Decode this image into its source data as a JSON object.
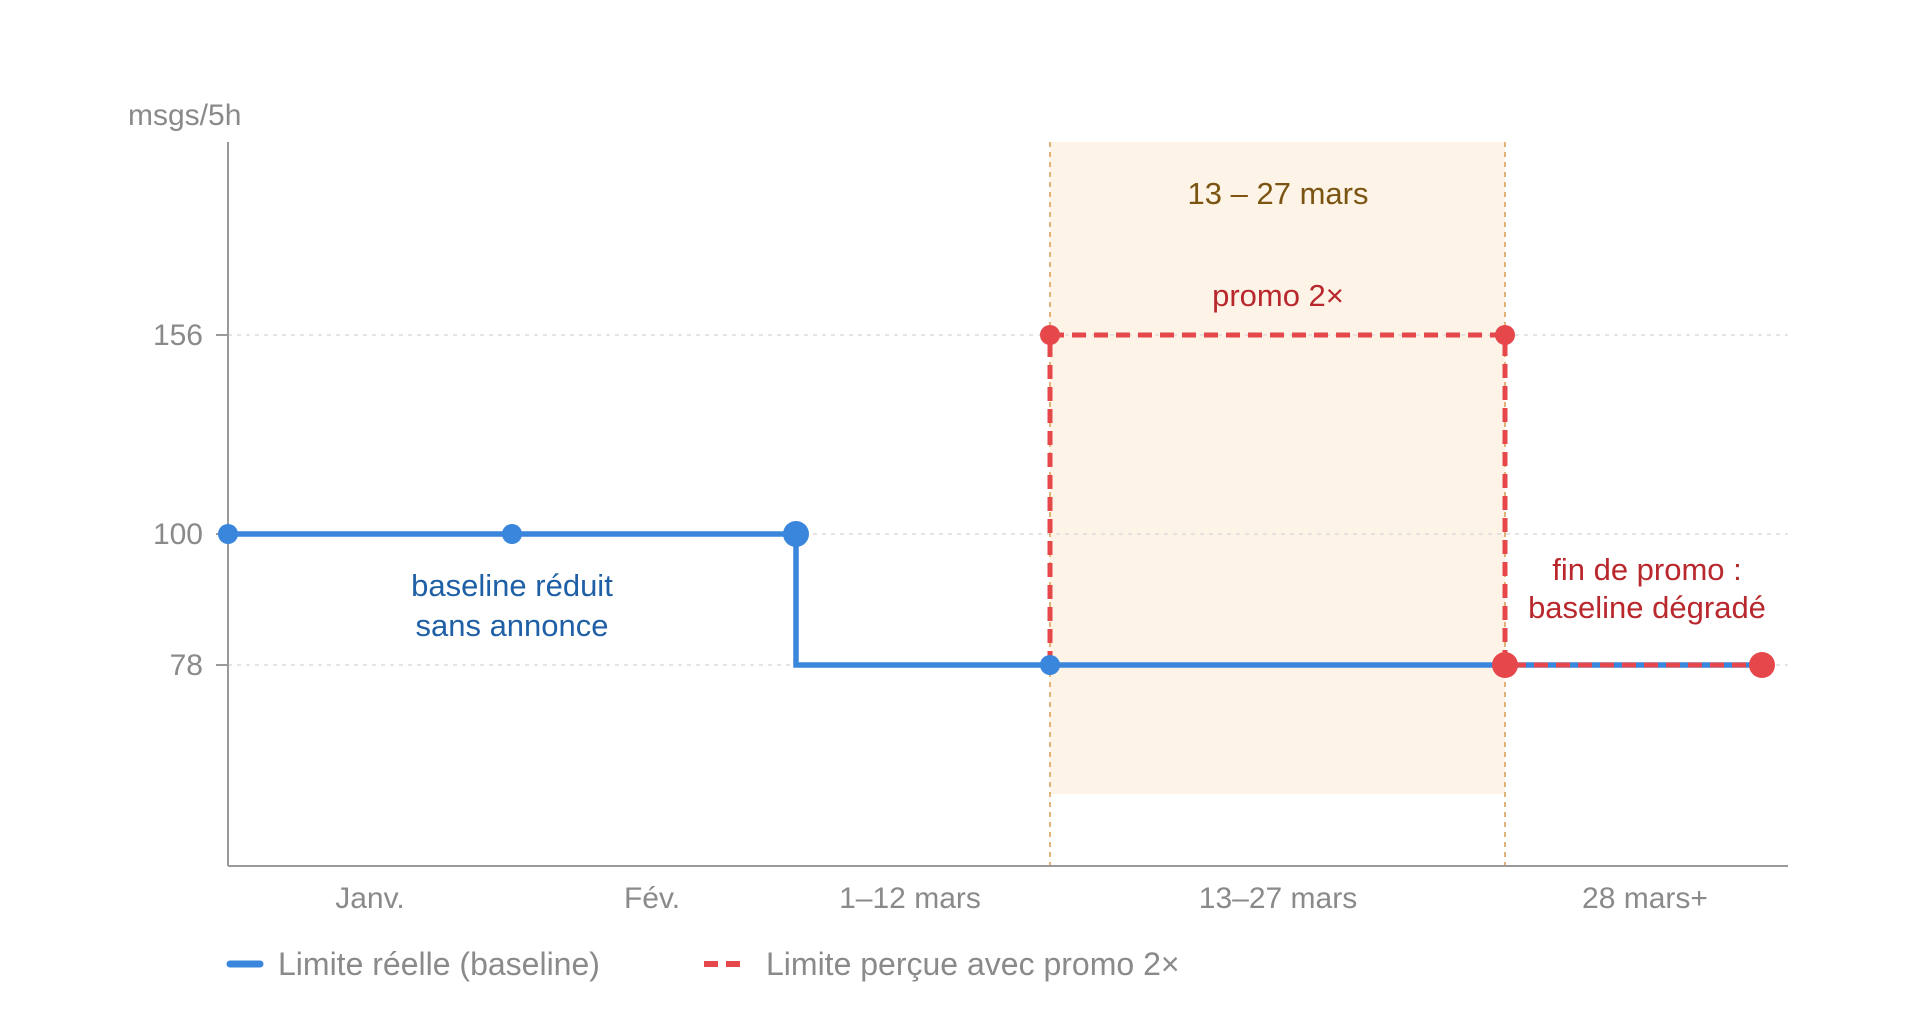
{
  "chart_data": {
    "type": "line",
    "ylabel": "msgs/5h",
    "yticks": [
      78,
      100,
      156
    ],
    "x_categories": [
      "Janv.",
      "Fév.",
      "1–12 mars",
      "13–27 mars",
      "28 mars+"
    ],
    "series": [
      {
        "name": "Limite réelle (baseline)",
        "color": "#3a86dc",
        "style": "solid",
        "step": true,
        "points": [
          {
            "x": "Janv.",
            "y": 100
          },
          {
            "x": "Janv.",
            "y": 100
          },
          {
            "x": "1–12 mars",
            "y": 100
          },
          {
            "x": "1–12 mars",
            "y": 78
          },
          {
            "x": "13–27 mars",
            "y": 78
          },
          {
            "x": "28 mars+",
            "y": 78
          }
        ]
      },
      {
        "name": "Limite perçue avec promo 2×",
        "color": "#e5474b",
        "style": "dashed",
        "step": true,
        "points": [
          {
            "x": "13–27 mars",
            "y": 78
          },
          {
            "x": "13–27 mars",
            "y": 156
          },
          {
            "x": "13–27 mars",
            "y": 156
          },
          {
            "x": "28 mars+",
            "y": 78
          },
          {
            "x": "28 mars+",
            "y": 78
          }
        ]
      }
    ],
    "shaded_region": {
      "label_top": "13 – 27 mars",
      "label_series": "promo 2×",
      "color": "#fdf3e7",
      "from": "13–27 mars start",
      "to": "13–27 mars end"
    },
    "annotations": {
      "baseline": [
        "baseline réduit",
        "sans annonce"
      ],
      "end_promo": [
        "fin de promo :",
        "baseline dégradé"
      ]
    },
    "legend": {
      "placement": "bottom-left",
      "items": [
        {
          "label": "Limite réelle (baseline)",
          "color": "#3a86dc",
          "style": "solid"
        },
        {
          "label": "Limite perçue avec promo 2×",
          "color": "#e5474b",
          "style": "dashed"
        }
      ]
    },
    "grid": "horizontal dotted at y ticks"
  }
}
